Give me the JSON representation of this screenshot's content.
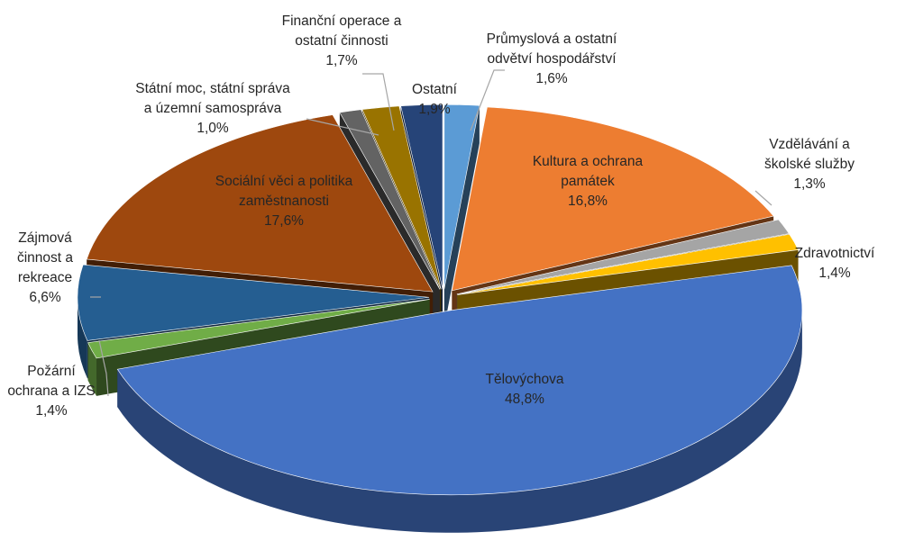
{
  "chart_data": {
    "type": "pie",
    "variant": "3d-exploded",
    "title": "",
    "slices": [
      {
        "name": "Průmyslová a ostatní odvětví hospodářství",
        "label_lines": [
          "Průmyslová a ostatní",
          "odvětví hospodářství"
        ],
        "value": 1.6,
        "value_label": "1,6%",
        "color": "#5b9bd5"
      },
      {
        "name": "Kultura a ochrana památek",
        "label_lines": [
          "Kultura a ochrana",
          "památek"
        ],
        "value": 16.8,
        "value_label": "16,8%",
        "color": "#ed7d31"
      },
      {
        "name": "Vzdělávání a školské služby",
        "label_lines": [
          "Vzdělávání a",
          "školské služby"
        ],
        "value": 1.3,
        "value_label": "1,3%",
        "color": "#a5a5a5"
      },
      {
        "name": "Zdravotnictví",
        "label_lines": [
          "Zdravotnictví"
        ],
        "value": 1.4,
        "value_label": "1,4%",
        "color": "#ffc000"
      },
      {
        "name": "Tělovýchova",
        "label_lines": [
          "Tělovýchova"
        ],
        "value": 48.8,
        "value_label": "48,8%",
        "color": "#4472c4"
      },
      {
        "name": "Požární ochrana a IZS",
        "label_lines": [
          "Požární",
          "ochrana a IZS"
        ],
        "value": 1.4,
        "value_label": "1,4%",
        "color": "#70ad47"
      },
      {
        "name": "Zájmová činnost a rekreace",
        "label_lines": [
          "Zájmová",
          "činnost a",
          "rekreace"
        ],
        "value": 6.6,
        "value_label": "6,6%",
        "color": "#255e91"
      },
      {
        "name": "Sociální věci a politika zaměstnanosti",
        "label_lines": [
          "Sociální věci a politika",
          "zaměstnanosti"
        ],
        "value": 17.6,
        "value_label": "17,6%",
        "color": "#9e480e"
      },
      {
        "name": "Státní moc, státní správa a územní samospráva",
        "label_lines": [
          "Státní moc, státní správa",
          "a územní samospráva"
        ],
        "value": 1.0,
        "value_label": "1,0%",
        "color": "#636363"
      },
      {
        "name": "Finanční operace a ostatní činnosti",
        "label_lines": [
          "Finanční operace a",
          "ostatní činnosti"
        ],
        "value": 1.7,
        "value_label": "1,7%",
        "color": "#997300"
      },
      {
        "name": "Ostatní",
        "label_lines": [
          "Ostatní"
        ],
        "value": 1.9,
        "value_label": "1,9%",
        "color": "#264478"
      }
    ],
    "legend": "none",
    "data_labels": "category name and percentage"
  }
}
